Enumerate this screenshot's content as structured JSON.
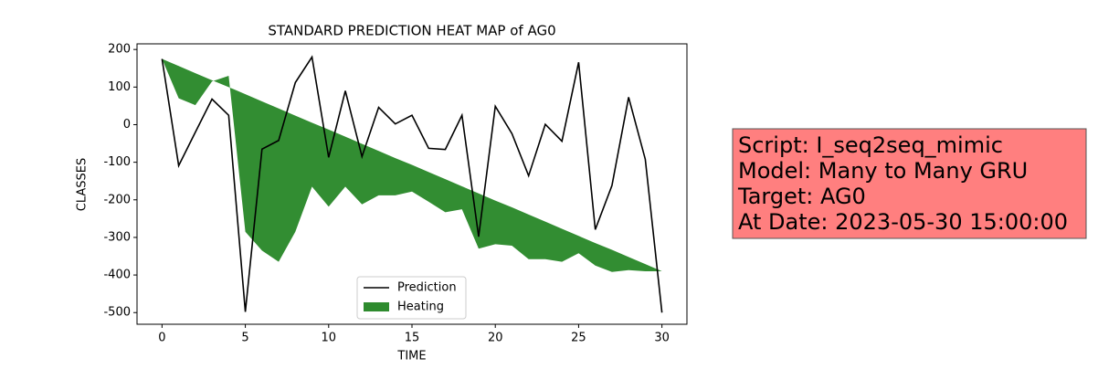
{
  "chart_data": {
    "type": "line",
    "title": "STANDARD PREDICTION HEAT MAP of AG0",
    "x_label": "TIME",
    "y_label": "CLASSES",
    "x": [
      0,
      1,
      2,
      3,
      4,
      5,
      6,
      7,
      8,
      9,
      10,
      11,
      12,
      13,
      14,
      15,
      16,
      17,
      18,
      19,
      20,
      21,
      22,
      23,
      24,
      25,
      26,
      27,
      28,
      29,
      30
    ],
    "series": [
      {
        "name": "Prediction",
        "color": "#000000",
        "values": [
          175,
          -109,
          -20,
          68,
          25,
          -498,
          -65,
          -42,
          112,
          180,
          -87,
          90,
          -85,
          46,
          2,
          25,
          -63,
          -66,
          25,
          -298,
          49,
          -24,
          -136,
          1,
          -44,
          166,
          -279,
          -162,
          73,
          -92,
          -500
        ]
      }
    ],
    "fill": {
      "name": "Heating",
      "color": "#2e8b2e",
      "y1": [
        175,
        156,
        137,
        118,
        100,
        81,
        62,
        43,
        24,
        5,
        -13,
        -32,
        -51,
        -70,
        -89,
        -107,
        -126,
        -145,
        -164,
        -183,
        -202,
        -220,
        -239,
        -258,
        -277,
        -296,
        -315,
        -333,
        -352,
        -371,
        -390
      ],
      "y2": [
        175,
        70,
        52,
        115,
        130,
        -285,
        -335,
        -365,
        -285,
        -165,
        -218,
        -165,
        -212,
        -188,
        -188,
        -178,
        -205,
        -233,
        -225,
        -330,
        -318,
        -322,
        -358,
        -358,
        -365,
        -342,
        -375,
        -392,
        -387,
        -390,
        -390
      ]
    },
    "xlim": [
      -1.5,
      31.5
    ],
    "xticks": [
      0,
      5,
      10,
      15,
      20,
      25,
      30
    ],
    "ylim": [
      -531,
      215
    ],
    "yticks": [
      200,
      100,
      0,
      -100,
      -200,
      -300,
      -400,
      -500
    ],
    "legend": "lower center",
    "info_box": {
      "color": "#ff7f7f",
      "lines": [
        "Script: I_seq2seq_mimic",
        "Model: Many to Many GRU",
        "Target: AG0",
        "At Date: 2023-05-30 15:00:00"
      ]
    }
  }
}
